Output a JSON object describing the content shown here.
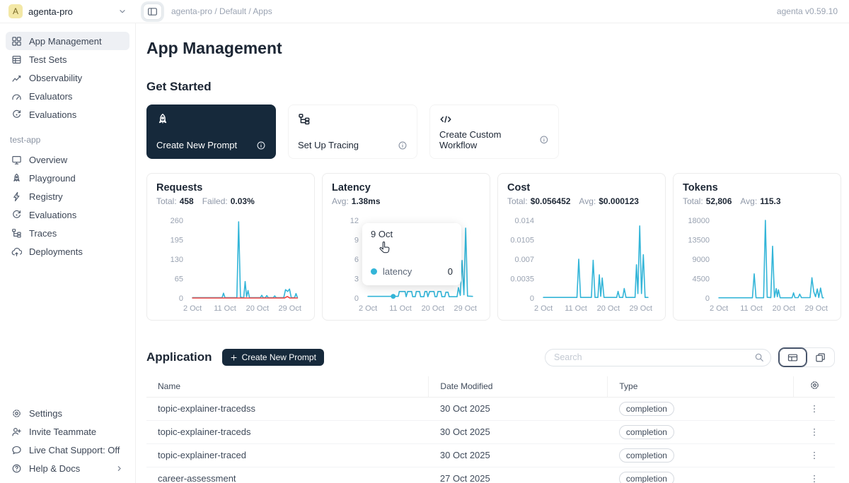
{
  "header": {
    "workspace_initial": "A",
    "workspace": "agenta-pro",
    "breadcrumb": "agenta-pro / Default / Apps",
    "version": "agenta v0.59.10"
  },
  "sidebar": {
    "main_items": [
      {
        "id": "app-management",
        "label": "App Management",
        "icon": "grid-icon",
        "active": true
      },
      {
        "id": "test-sets",
        "label": "Test Sets",
        "icon": "table-icon",
        "active": false
      },
      {
        "id": "observability",
        "label": "Observability",
        "icon": "chart-line-icon",
        "active": false
      },
      {
        "id": "evaluators",
        "label": "Evaluators",
        "icon": "gauge-icon",
        "active": false
      },
      {
        "id": "evaluations",
        "label": "Evaluations",
        "icon": "refresh-icon",
        "active": false
      }
    ],
    "app_section_label": "test-app",
    "app_items": [
      {
        "id": "overview",
        "label": "Overview",
        "icon": "monitor-icon",
        "active": false
      },
      {
        "id": "playground",
        "label": "Playground",
        "icon": "rocket-icon",
        "active": false
      },
      {
        "id": "registry",
        "label": "Registry",
        "icon": "lightning-icon",
        "active": false
      },
      {
        "id": "evaluations-app",
        "label": "Evaluations",
        "icon": "refresh-icon",
        "active": false
      },
      {
        "id": "traces",
        "label": "Traces",
        "icon": "tree-icon",
        "active": false
      },
      {
        "id": "deployments",
        "label": "Deployments",
        "icon": "cloud-icon",
        "active": false
      }
    ],
    "bottom_items": [
      {
        "id": "settings",
        "label": "Settings",
        "icon": "gear-icon"
      },
      {
        "id": "invite-teammate",
        "label": "Invite Teammate",
        "icon": "user-add-icon"
      },
      {
        "id": "live-chat",
        "label": "Live Chat Support: Off",
        "icon": "chat-icon"
      },
      {
        "id": "help-docs",
        "label": "Help & Docs",
        "icon": "help-icon",
        "trailing_icon": "chevron-right-icon"
      }
    ]
  },
  "page": {
    "title": "App Management",
    "get_started_title": "Get Started"
  },
  "get_started_cards": [
    {
      "id": "create-new-prompt",
      "label": "Create New Prompt",
      "icon": "rocket-icon",
      "style": "dark"
    },
    {
      "id": "set-up-tracing",
      "label": "Set Up Tracing",
      "icon": "tree-icon",
      "style": "light"
    },
    {
      "id": "create-custom-workflow",
      "label": "Create Custom Workflow",
      "icon": "code-icon",
      "style": "light"
    }
  ],
  "application": {
    "title": "Application",
    "create_button_label": "Create New Prompt",
    "search_placeholder": "Search"
  },
  "table": {
    "columns": [
      "Name",
      "Date Modified",
      "Type"
    ],
    "rows": [
      {
        "name": "topic-explainer-tracedss",
        "date_modified": "30 Oct 2025",
        "type": "completion"
      },
      {
        "name": "topic-explainer-traceds",
        "date_modified": "30 Oct 2025",
        "type": "completion"
      },
      {
        "name": "topic-explainer-traced",
        "date_modified": "30 Oct 2025",
        "type": "completion"
      },
      {
        "name": "career-assessment",
        "date_modified": "27 Oct 2025",
        "type": "completion"
      }
    ]
  },
  "colors": {
    "accent": "#33b5d8",
    "danger": "#f0413e",
    "dark_navy": "#16293b",
    "avatar_bg": "#f3e8a6"
  },
  "chart_data": [
    {
      "type": "line",
      "title": "Requests",
      "stats": [
        {
          "label": "Total:",
          "value": "458"
        },
        {
          "label": "Failed:",
          "value": "0.03%"
        }
      ],
      "x_range": [
        1,
        32
      ],
      "xticks": [
        {
          "day": 2,
          "label": "2 Oct"
        },
        {
          "day": 11,
          "label": "11 Oct"
        },
        {
          "day": 20,
          "label": "20 Oct"
        },
        {
          "day": 29,
          "label": "29 Oct"
        }
      ],
      "ylim": [
        0,
        260
      ],
      "yticks": [
        "0",
        "65",
        "130",
        "195",
        "260"
      ],
      "series": [
        {
          "name": "requests",
          "color": "#33b5d8",
          "points": [
            [
              2,
              1
            ],
            [
              10.2,
              1
            ],
            [
              10.6,
              16
            ],
            [
              11,
              1
            ],
            [
              14.3,
              1
            ],
            [
              14.8,
              255
            ],
            [
              15.3,
              3
            ],
            [
              16.2,
              1
            ],
            [
              16.6,
              55
            ],
            [
              17,
              4
            ],
            [
              17.4,
              25
            ],
            [
              17.8,
              1
            ],
            [
              20.8,
              1
            ],
            [
              21.2,
              9
            ],
            [
              21.6,
              1
            ],
            [
              22.2,
              1
            ],
            [
              22.6,
              8
            ],
            [
              23,
              1
            ],
            [
              24.4,
              1
            ],
            [
              24.8,
              7
            ],
            [
              25.2,
              1
            ],
            [
              27.3,
              1
            ],
            [
              27.8,
              28
            ],
            [
              28.4,
              22
            ],
            [
              28.9,
              30
            ],
            [
              29.4,
              1
            ],
            [
              30.3,
              1
            ],
            [
              30.7,
              15
            ],
            [
              31.1,
              1
            ]
          ]
        },
        {
          "name": "failed",
          "color": "#f0413e",
          "points": [
            [
              2,
              0
            ],
            [
              27.5,
              0
            ],
            [
              28.3,
              5
            ],
            [
              29,
              0
            ],
            [
              31.1,
              0
            ]
          ]
        }
      ]
    },
    {
      "type": "line",
      "title": "Latency",
      "stats": [
        {
          "label": "Avg:",
          "value": "1.38ms"
        }
      ],
      "x_range": [
        1,
        32
      ],
      "xticks": [
        {
          "day": 2,
          "label": "2 Oct"
        },
        {
          "day": 11,
          "label": "11 Oct"
        },
        {
          "day": 20,
          "label": "20 Oct"
        },
        {
          "day": 29,
          "label": "29 Oct"
        }
      ],
      "ylim": [
        0,
        12
      ],
      "yticks": [
        "0",
        "3",
        "6",
        "9",
        "12"
      ],
      "series": [
        {
          "name": "latency",
          "color": "#33b5d8",
          "points": [
            [
              2,
              0.25
            ],
            [
              9,
              0.25
            ],
            [
              10.4,
              0.25
            ],
            [
              10.7,
              1
            ],
            [
              12.3,
              1
            ],
            [
              12.6,
              0.2
            ],
            [
              13,
              1
            ],
            [
              14.1,
              1
            ],
            [
              14.4,
              0.2
            ],
            [
              15.1,
              0.2
            ],
            [
              15.4,
              1
            ],
            [
              16.3,
              1
            ],
            [
              16.6,
              0.2
            ],
            [
              17.5,
              0.2
            ],
            [
              17.8,
              1
            ],
            [
              18.3,
              1
            ],
            [
              18.6,
              0.2
            ],
            [
              19.1,
              1
            ],
            [
              20.3,
              1
            ],
            [
              20.6,
              0.2
            ],
            [
              21.1,
              0.2
            ],
            [
              21.4,
              1
            ],
            [
              22.2,
              1
            ],
            [
              22.5,
              0.2
            ],
            [
              23.3,
              0.2
            ],
            [
              23.6,
              0.9
            ],
            [
              24.2,
              0.9
            ],
            [
              24.5,
              0.2
            ],
            [
              26.7,
              0.2
            ],
            [
              27.1,
              1.6
            ],
            [
              27.6,
              0.4
            ],
            [
              28.1,
              5.8
            ],
            [
              28.6,
              0.5
            ],
            [
              29.1,
              10.8
            ],
            [
              29.6,
              0.3
            ],
            [
              31,
              0.25
            ]
          ]
        }
      ],
      "marker": {
        "day": 9,
        "value": 0.25,
        "color": "#33b5d8"
      },
      "tooltip": {
        "date": "9 Oct",
        "series": "latency",
        "value": "0"
      }
    },
    {
      "type": "line",
      "title": "Cost",
      "stats": [
        {
          "label": "Total:",
          "value": "$0.056452"
        },
        {
          "label": "Avg:",
          "value": "$0.000123"
        }
      ],
      "x_range": [
        1,
        32
      ],
      "xticks": [
        {
          "day": 2,
          "label": "2 Oct"
        },
        {
          "day": 11,
          "label": "11 Oct"
        },
        {
          "day": 20,
          "label": "20 Oct"
        },
        {
          "day": 29,
          "label": "29 Oct"
        }
      ],
      "ylim": [
        0,
        0.014
      ],
      "yticks": [
        "0",
        "0.0035",
        "0.007",
        "0.0105",
        "0.014"
      ],
      "series": [
        {
          "name": "cost",
          "color": "#33b5d8",
          "points": [
            [
              2,
              0.0001
            ],
            [
              11.3,
              0.0001
            ],
            [
              11.8,
              0.007
            ],
            [
              12.3,
              0.0001
            ],
            [
              15.3,
              0.0001
            ],
            [
              15.8,
              0.0068
            ],
            [
              16.3,
              0.0001
            ],
            [
              17.1,
              0.0001
            ],
            [
              17.5,
              0.0042
            ],
            [
              17.9,
              0.0003
            ],
            [
              18.3,
              0.0036
            ],
            [
              18.8,
              0.0001
            ],
            [
              22.3,
              0.0001
            ],
            [
              22.7,
              0.0012
            ],
            [
              23.1,
              0.0001
            ],
            [
              24,
              0.0001
            ],
            [
              24.4,
              0.0017
            ],
            [
              24.9,
              0.0001
            ],
            [
              27.4,
              0.0001
            ],
            [
              27.8,
              0.006
            ],
            [
              28.2,
              0.0008
            ],
            [
              28.7,
              0.013
            ],
            [
              29.2,
              0.0008
            ],
            [
              29.7,
              0.0078
            ],
            [
              30.2,
              0.0001
            ],
            [
              31,
              0.0001
            ]
          ]
        }
      ]
    },
    {
      "type": "line",
      "title": "Tokens",
      "stats": [
        {
          "label": "Total:",
          "value": "52,806"
        },
        {
          "label": "Avg:",
          "value": "115.3"
        }
      ],
      "x_range": [
        1,
        32
      ],
      "xticks": [
        {
          "day": 2,
          "label": "2 Oct"
        },
        {
          "day": 11,
          "label": "11 Oct"
        },
        {
          "day": 20,
          "label": "20 Oct"
        },
        {
          "day": 29,
          "label": "29 Oct"
        }
      ],
      "ylim": [
        0,
        18000
      ],
      "yticks": [
        "0",
        "4500",
        "9000",
        "13500",
        "18000"
      ],
      "series": [
        {
          "name": "tokens",
          "color": "#33b5d8",
          "points": [
            [
              2,
              50
            ],
            [
              11.3,
              50
            ],
            [
              11.8,
              5600
            ],
            [
              12.3,
              50
            ],
            [
              14.4,
              50
            ],
            [
              14.9,
              18000
            ],
            [
              15.4,
              150
            ],
            [
              16.4,
              100
            ],
            [
              16.9,
              12000
            ],
            [
              17.4,
              150
            ],
            [
              17.9,
              2200
            ],
            [
              18.2,
              300
            ],
            [
              18.5,
              1900
            ],
            [
              19,
              50
            ],
            [
              22.3,
              50
            ],
            [
              22.7,
              1200
            ],
            [
              23.1,
              80
            ],
            [
              24,
              80
            ],
            [
              24.4,
              900
            ],
            [
              24.9,
              80
            ],
            [
              27.3,
              80
            ],
            [
              27.8,
              4700
            ],
            [
              28.3,
              1500
            ],
            [
              28.8,
              300
            ],
            [
              29.3,
              2100
            ],
            [
              29.7,
              100
            ],
            [
              30.2,
              2300
            ],
            [
              30.7,
              50
            ],
            [
              31,
              50
            ]
          ]
        }
      ]
    }
  ]
}
